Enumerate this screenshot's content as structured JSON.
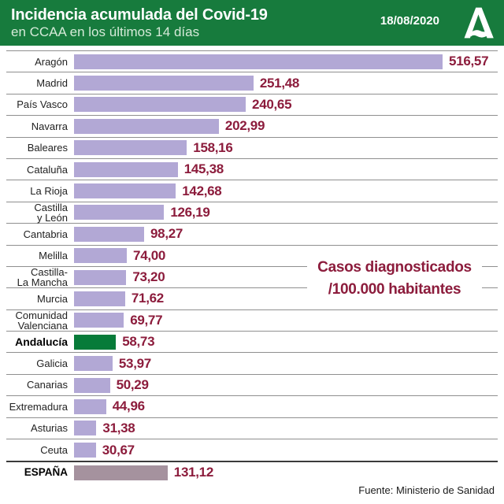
{
  "header": {
    "title": "Incidencia acumulada del Covid-19",
    "subtitle": "en CCAA en los últimos 14 días",
    "date": "18/08/2020",
    "logo": "junta-de-andalucia-logo"
  },
  "annotation": {
    "line1": "Casos diagnosticados",
    "line2": "/100.000 habitantes"
  },
  "footer": {
    "source": "Fuente: Ministerio de Sanidad"
  },
  "colors": {
    "header_green": "#177b3d",
    "bar_lavender": "#b2a8d5",
    "bar_andalucia_green": "#077b39",
    "bar_espana_mauve": "#a5929e",
    "value_maroon": "#8c1c3c",
    "separator_gray": "#8f8f8f"
  },
  "chart_data": {
    "type": "bar",
    "orientation": "horizontal",
    "title": "Incidencia acumulada del Covid-19 en CCAA en los últimos 14 días",
    "date": "18/08/2020",
    "unit_label": "Casos diagnosticados /100.000 habitantes",
    "source": "Fuente: Ministerio de Sanidad",
    "x_max": 516.57,
    "grid": "row-separators",
    "legend_position": "none",
    "rows": [
      {
        "label": "Aragón",
        "value": 516.57,
        "display": "516,57",
        "kind": "normal"
      },
      {
        "label": "Madrid",
        "value": 251.48,
        "display": "251,48",
        "kind": "normal"
      },
      {
        "label": "País Vasco",
        "value": 240.65,
        "display": "240,65",
        "kind": "normal"
      },
      {
        "label": "Navarra",
        "value": 202.99,
        "display": "202,99",
        "kind": "normal"
      },
      {
        "label": "Baleares",
        "value": 158.16,
        "display": "158,16",
        "kind": "normal"
      },
      {
        "label": "Cataluña",
        "value": 145.38,
        "display": "145,38",
        "kind": "normal"
      },
      {
        "label": "La Rioja",
        "value": 142.68,
        "display": "142,68",
        "kind": "normal"
      },
      {
        "label": "Castilla\ny León",
        "value": 126.19,
        "display": "126,19",
        "kind": "normal"
      },
      {
        "label": "Cantabria",
        "value": 98.27,
        "display": "98,27",
        "kind": "normal"
      },
      {
        "label": "Melilla",
        "value": 74.0,
        "display": "74,00",
        "kind": "normal"
      },
      {
        "label": "Castilla-\nLa Mancha",
        "value": 73.2,
        "display": "73,20",
        "kind": "normal"
      },
      {
        "label": "Murcia",
        "value": 71.62,
        "display": "71,62",
        "kind": "normal"
      },
      {
        "label": "Comunidad\nValenciana",
        "value": 69.77,
        "display": "69,77",
        "kind": "normal"
      },
      {
        "label": "Andalucía",
        "value": 58.73,
        "display": "58,73",
        "kind": "andalucia"
      },
      {
        "label": "Galicia",
        "value": 53.97,
        "display": "53,97",
        "kind": "normal"
      },
      {
        "label": "Canarias",
        "value": 50.29,
        "display": "50,29",
        "kind": "normal"
      },
      {
        "label": "Extremadura",
        "value": 44.96,
        "display": "44,96",
        "kind": "normal"
      },
      {
        "label": "Asturias",
        "value": 31.38,
        "display": "31,38",
        "kind": "normal"
      },
      {
        "label": "Ceuta",
        "value": 30.67,
        "display": "30,67",
        "kind": "normal"
      },
      {
        "label": "ESPAÑA",
        "value": 131.12,
        "display": "131,12",
        "kind": "espana"
      }
    ]
  }
}
